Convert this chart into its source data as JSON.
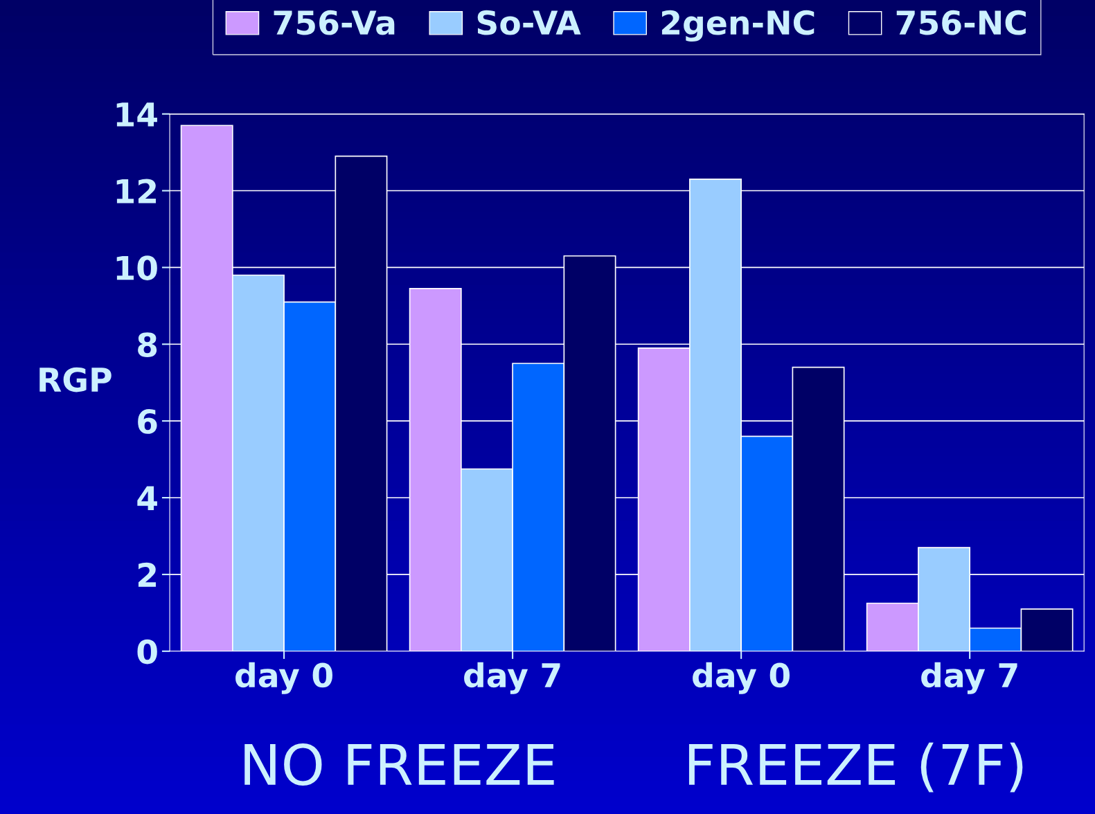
{
  "chart_data": {
    "type": "bar",
    "categories": [
      "day 0",
      "day 7",
      "day 0",
      "day 7"
    ],
    "ylabel": "RGP",
    "ylim": [
      0,
      14
    ],
    "yticks": [
      0,
      2,
      4,
      6,
      8,
      10,
      12,
      14
    ],
    "grid": "y",
    "legend": "top",
    "series": [
      {
        "name": "756-Va",
        "color": "#cc99ff",
        "values": [
          13.7,
          9.45,
          7.9,
          1.25
        ]
      },
      {
        "name": "So-VA",
        "color": "#99ccff",
        "values": [
          9.8,
          4.75,
          12.3,
          2.7
        ]
      },
      {
        "name": "2gen-NC",
        "color": "#0066ff",
        "values": [
          9.1,
          7.5,
          5.6,
          0.6
        ]
      },
      {
        "name": "756-NC",
        "color": "#000066",
        "values": [
          12.9,
          10.3,
          7.4,
          1.1
        ]
      }
    ],
    "annotations": [
      "NO FREEZE",
      "FREEZE (7F)"
    ]
  }
}
